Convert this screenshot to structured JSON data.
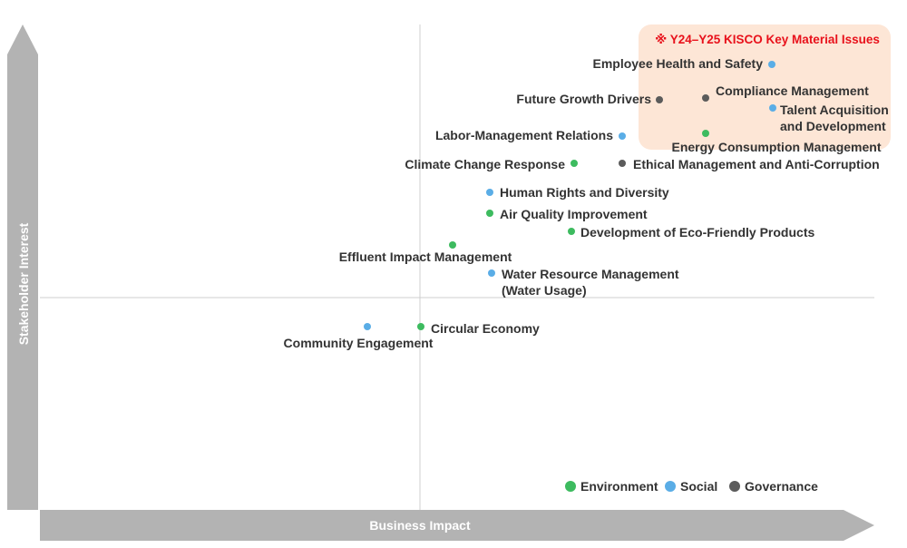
{
  "chart_data": {
    "type": "scatter",
    "xlabel": "Business Impact",
    "ylabel": "Stakeholder Interest",
    "key_issues_title": "※ Y24–Y25 KISCO Key Material Issues",
    "series": [
      {
        "name": "Environment",
        "color": "#3dbb5f"
      },
      {
        "name": "Social",
        "color": "#5aade6"
      },
      {
        "name": "Governance",
        "color": "#5b5b5b"
      }
    ],
    "points": [
      {
        "label": "Employee Health and Safety",
        "category": "Social",
        "key_issue": true
      },
      {
        "label": "Compliance Management",
        "category": "Governance",
        "key_issue": true
      },
      {
        "label": "Future Growth Drivers",
        "category": "Governance",
        "key_issue": true
      },
      {
        "label": "Talent Acquisition and Development",
        "category": "Social",
        "key_issue": true,
        "lines": [
          "Talent Acquisition",
          "and Development"
        ]
      },
      {
        "label": "Energy Consumption Management",
        "category": "Environment",
        "key_issue": true
      },
      {
        "label": "Labor-Management Relations",
        "category": "Social",
        "key_issue": false
      },
      {
        "label": "Climate Change Response",
        "category": "Environment",
        "key_issue": false
      },
      {
        "label": "Ethical Management and Anti-Corruption",
        "category": "Governance",
        "key_issue": false
      },
      {
        "label": "Human Rights and Diversity",
        "category": "Social",
        "key_issue": false
      },
      {
        "label": "Air Quality Improvement",
        "category": "Environment",
        "key_issue": false
      },
      {
        "label": "Development of Eco-Friendly Products",
        "category": "Environment",
        "key_issue": false
      },
      {
        "label": "Effluent Impact Management",
        "category": "Environment",
        "key_issue": false
      },
      {
        "label": "Water Resource Management (Water Usage)",
        "category": "Social",
        "key_issue": false,
        "lines": [
          "Water Resource Management",
          "(Water Usage)"
        ]
      },
      {
        "label": "Community Engagement",
        "category": "Social",
        "key_issue": false
      },
      {
        "label": "Circular Economy",
        "category": "Environment",
        "key_issue": false
      }
    ]
  }
}
